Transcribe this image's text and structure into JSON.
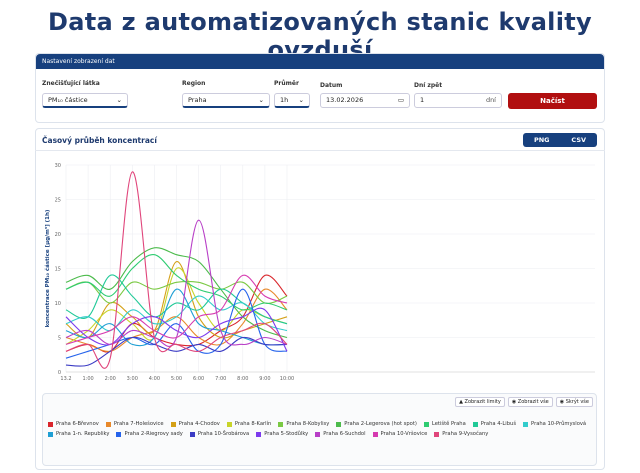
{
  "page": {
    "title": "Data z automatizovaných stanic kvality ovzduší",
    "settings": {
      "header": "Nastavení zobrazení dat",
      "fields": [
        {
          "label": "Znečišťující látka",
          "value": "PM₁₀ částice"
        },
        {
          "label": "Region",
          "value": "Praha"
        },
        {
          "label": "Průměr",
          "value": "1h"
        },
        {
          "label": "Datum",
          "value": "13.02.2026"
        },
        {
          "label": "Dní zpět",
          "value": "1",
          "suffix": "dní"
        }
      ],
      "button": "Načíst"
    },
    "chart_panel": {
      "title": "Časový průběh koncentrací",
      "buttons": [
        "PNG",
        "CSV"
      ]
    },
    "legend_buttons": [
      "Zobrazit limity",
      "Zobrazit vše",
      "Skrýt vše"
    ]
  },
  "chart_data": {
    "type": "line",
    "y_label": "koncentrace PM₁₀ částice [µg/m³] (1h)",
    "categories": [
      "13.2",
      "1:00",
      "2:00",
      "3:00",
      "4:00",
      "5:00",
      "6:00",
      "7:00",
      "8:00",
      "9:00",
      "10:00"
    ],
    "ylim": [
      0,
      30
    ],
    "yticks": [
      0,
      5,
      10,
      15,
      20,
      25,
      30
    ],
    "grid": true,
    "series": [
      {
        "name": "Praha 6-Břevnov",
        "color": "#d9262c",
        "values": [
          3,
          4,
          3,
          7,
          5,
          4,
          4,
          6,
          8,
          14,
          11
        ]
      },
      {
        "name": "Praha 7-Holešovice",
        "color": "#e8892b",
        "values": [
          5,
          4,
          3,
          5,
          6,
          8,
          5,
          4,
          7,
          12,
          9
        ]
      },
      {
        "name": "Praha 4-Chodov",
        "color": "#d4a017",
        "values": [
          7,
          5,
          10,
          8,
          6,
          16,
          8,
          5,
          6,
          7,
          8
        ]
      },
      {
        "name": "Praha 8-Karlín",
        "color": "#c8d42a",
        "values": [
          4,
          6,
          9,
          7,
          5,
          15,
          10,
          6,
          9,
          8,
          7
        ]
      },
      {
        "name": "Praha 8-Kobylisy",
        "color": "#7ac943",
        "values": [
          12,
          13,
          10,
          13,
          12,
          13,
          13,
          12,
          13,
          10,
          11
        ]
      },
      {
        "name": "Praha 2-Legerova (hot spot)",
        "color": "#4cbb4c",
        "values": [
          13,
          14,
          12,
          16,
          18,
          17,
          16,
          12,
          8,
          6,
          5
        ]
      },
      {
        "name": "Letiště Praha",
        "color": "#2ecc71",
        "values": [
          12,
          13,
          11,
          15,
          17,
          14,
          12,
          11,
          9,
          10,
          9
        ]
      },
      {
        "name": "Praha 4-Libuš",
        "color": "#20c997",
        "values": [
          9,
          8,
          14,
          11,
          8,
          10,
          9,
          12,
          10,
          8,
          7
        ]
      },
      {
        "name": "Praha 10-Průmyslová",
        "color": "#33cccc",
        "values": [
          7,
          8,
          6,
          9,
          7,
          8,
          11,
          9,
          10,
          7,
          6
        ]
      },
      {
        "name": "Praha 1-n. Republiky",
        "color": "#1f9fd4",
        "values": [
          6,
          5,
          7,
          4,
          5,
          12,
          7,
          6,
          5,
          4,
          4
        ]
      },
      {
        "name": "Praha 2-Riegrovy sady",
        "color": "#2563eb",
        "values": [
          2,
          3,
          4,
          5,
          4,
          7,
          3,
          4,
          12,
          4,
          3
        ]
      },
      {
        "name": "Praha 10-Šrobárova",
        "color": "#3b3bc4",
        "values": [
          1,
          1,
          3,
          5,
          4,
          3,
          4,
          3,
          5,
          4,
          4
        ]
      },
      {
        "name": "Praha 5-Stodůlky",
        "color": "#7c3aed",
        "values": [
          8,
          5,
          4,
          7,
          8,
          6,
          5,
          7,
          8,
          9,
          3
        ]
      },
      {
        "name": "Praha 6-Suchdol",
        "color": "#b83fc7",
        "values": [
          5,
          6,
          4,
          6,
          5,
          5,
          22,
          6,
          4,
          5,
          4
        ]
      },
      {
        "name": "Praha 10-Vršovice",
        "color": "#d63ab0",
        "values": [
          4,
          5,
          6,
          8,
          6,
          5,
          8,
          9,
          14,
          11,
          10
        ]
      },
      {
        "name": "Praha 9-Vysočany",
        "color": "#e0457b",
        "values": [
          3,
          4,
          2,
          29,
          5,
          4,
          3,
          5,
          6,
          7,
          4
        ]
      }
    ]
  }
}
